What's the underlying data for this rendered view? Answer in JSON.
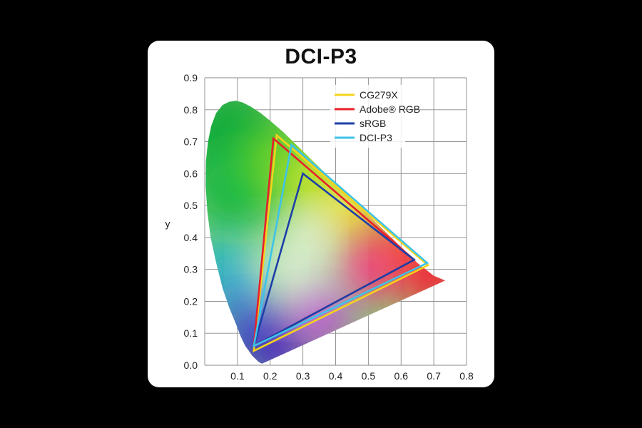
{
  "chart_data": {
    "type": "scatter",
    "title": "DCI-P3",
    "xlabel": "",
    "ylabel": "y",
    "xlim": [
      0,
      0.8
    ],
    "ylim": [
      0,
      0.9
    ],
    "x_ticks": [
      "0.1",
      "0.2",
      "0.3",
      "0.4",
      "0.5",
      "0.6",
      "0.7",
      "0.8"
    ],
    "y_ticks": [
      "0.0",
      "0.1",
      "0.2",
      "0.3",
      "0.4",
      "0.5",
      "0.6",
      "0.7",
      "0.8",
      "0.9"
    ],
    "grid": true,
    "legend_position": "top-right",
    "series": [
      {
        "name": "CG279X",
        "color": "#f5d31c",
        "points": [
          [
            0.682,
            0.313
          ],
          [
            0.22,
            0.72
          ],
          [
            0.15,
            0.045
          ]
        ]
      },
      {
        "name": "Adobe® RGB",
        "color": "#e8202a",
        "points": [
          [
            0.64,
            0.33
          ],
          [
            0.21,
            0.71
          ],
          [
            0.15,
            0.06
          ]
        ]
      },
      {
        "name": "sRGB",
        "color": "#1c3fa8",
        "points": [
          [
            0.64,
            0.33
          ],
          [
            0.3,
            0.6
          ],
          [
            0.15,
            0.06
          ]
        ]
      },
      {
        "name": "DCI-P3",
        "color": "#3ec3e8",
        "points": [
          [
            0.68,
            0.32
          ],
          [
            0.265,
            0.69
          ],
          [
            0.15,
            0.06
          ]
        ]
      }
    ]
  }
}
